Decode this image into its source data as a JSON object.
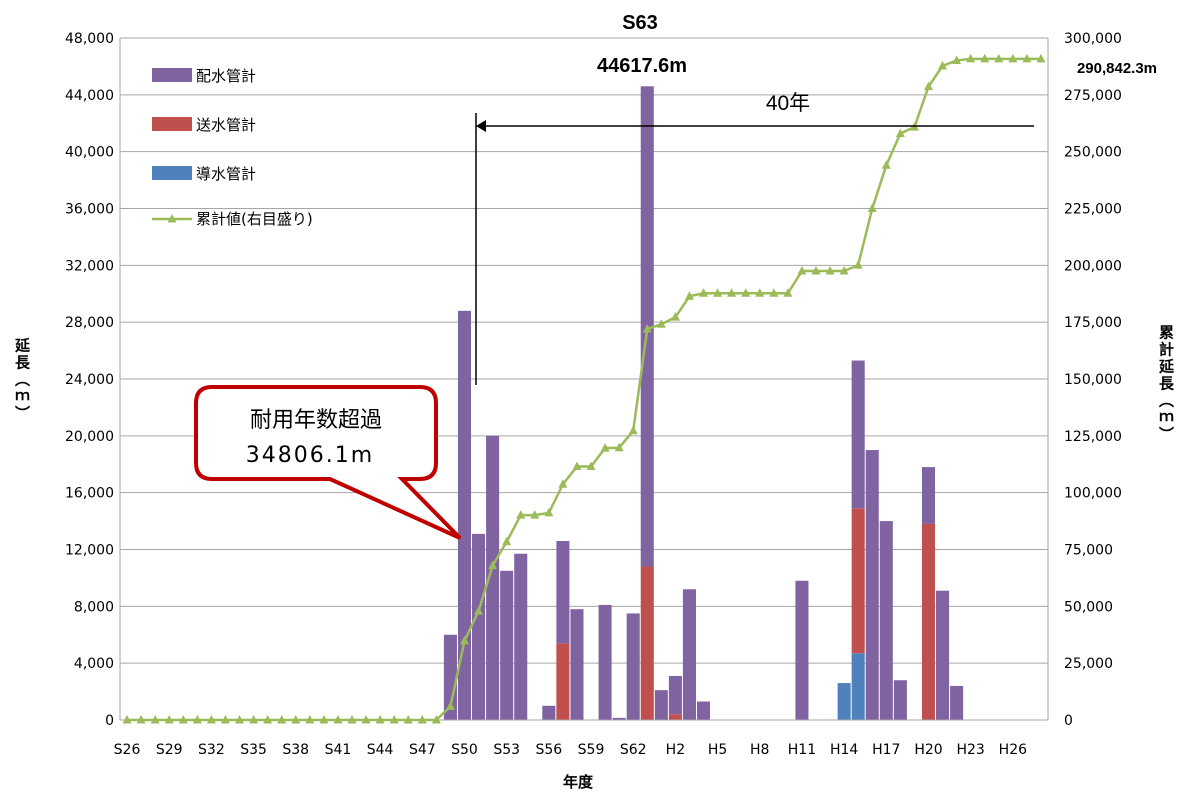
{
  "chart_data": {
    "type": "bar",
    "stacked": true,
    "xlabel": "年度",
    "ylabel": "延長（ｍ）",
    "y2label": "累計延長（ｍ）",
    "ylim": [
      0,
      48000
    ],
    "y2lim": [
      0,
      300000
    ],
    "yticks": [
      "0",
      "4,000",
      "8,000",
      "12,000",
      "16,000",
      "20,000",
      "24,000",
      "28,000",
      "32,000",
      "36,000",
      "40,000",
      "44,000",
      "48,000"
    ],
    "y2ticks": [
      "0",
      "25,000",
      "50,000",
      "75,000",
      "100,000",
      "125,000",
      "150,000",
      "175,000",
      "200,000",
      "225,000",
      "250,000",
      "275,000",
      "300,000"
    ],
    "categories": [
      "S26",
      "S27",
      "S28",
      "S29",
      "S30",
      "S31",
      "S32",
      "S33",
      "S34",
      "S35",
      "S36",
      "S37",
      "S38",
      "S39",
      "S40",
      "S41",
      "S42",
      "S43",
      "S44",
      "S45",
      "S46",
      "S47",
      "S48",
      "S49",
      "S50",
      "S51",
      "S52",
      "S53",
      "S54",
      "S55",
      "S56",
      "S57",
      "S58",
      "S59",
      "S60",
      "S61",
      "S62",
      "S63",
      "H1",
      "H2",
      "H3",
      "H4",
      "H5",
      "H6",
      "H7",
      "H8",
      "H9",
      "H10",
      "H11",
      "H12",
      "H13",
      "H14",
      "H15",
      "H16",
      "H17",
      "H18",
      "H19",
      "H20",
      "H21",
      "H22",
      "H23",
      "H24",
      "H25",
      "H26",
      "H27",
      "H28"
    ],
    "xtick_labels": [
      "S26",
      "S29",
      "S32",
      "S35",
      "S38",
      "S41",
      "S44",
      "S47",
      "S50",
      "S53",
      "S56",
      "S59",
      "S62",
      "H2",
      "H5",
      "H8",
      "H11",
      "H14",
      "H17",
      "H20",
      "H23",
      "H26"
    ],
    "series": [
      {
        "name": "導水管計",
        "color": "#4F81BD",
        "values": [
          0,
          0,
          0,
          0,
          0,
          0,
          0,
          0,
          0,
          0,
          0,
          0,
          0,
          0,
          0,
          0,
          0,
          0,
          0,
          0,
          0,
          0,
          0,
          0,
          0,
          0,
          0,
          0,
          0,
          0,
          0,
          0,
          0,
          0,
          0,
          0,
          0,
          0,
          0,
          0,
          0,
          0,
          0,
          0,
          0,
          0,
          0,
          0,
          0,
          0,
          0,
          2600,
          4700,
          0,
          0,
          0,
          0,
          0,
          0,
          0,
          0,
          0,
          0,
          0,
          0,
          0
        ]
      },
      {
        "name": "送水管計",
        "color": "#C0504D",
        "values": [
          0,
          0,
          0,
          0,
          0,
          0,
          0,
          0,
          0,
          0,
          0,
          0,
          0,
          0,
          0,
          0,
          0,
          0,
          0,
          0,
          0,
          0,
          0,
          0,
          0,
          0,
          0,
          0,
          0,
          0,
          0,
          5400,
          0,
          0,
          0,
          0,
          0,
          10800,
          0,
          400,
          0,
          0,
          0,
          0,
          0,
          0,
          0,
          0,
          0,
          0,
          0,
          0,
          10200,
          0,
          0,
          0,
          0,
          13800,
          0,
          0,
          0,
          0,
          0,
          0,
          0,
          0
        ]
      },
      {
        "name": "配水管計",
        "color": "#8064A2",
        "values": [
          0,
          0,
          0,
          0,
          0,
          0,
          0,
          0,
          0,
          0,
          0,
          0,
          0,
          0,
          0,
          0,
          0,
          0,
          0,
          0,
          0,
          0,
          0,
          6000,
          28800,
          13100,
          20000,
          10500,
          11700,
          0,
          1000,
          7200,
          7800,
          0,
          8100,
          150,
          7500,
          33800,
          2100,
          2700,
          9200,
          1300,
          0,
          0,
          0,
          0,
          0,
          0,
          9800,
          0,
          0,
          0,
          10400,
          19000,
          14000,
          2800,
          0,
          4000,
          9100,
          2400,
          0,
          0,
          0,
          0,
          0,
          0
        ]
      },
      {
        "name": "累計値(右目盛り)",
        "color": "#9BBB59",
        "type": "line",
        "axis": "right",
        "values": [
          0,
          0,
          0,
          0,
          0,
          0,
          0,
          0,
          0,
          0,
          0,
          0,
          0,
          0,
          0,
          0,
          0,
          0,
          0,
          0,
          0,
          0,
          0,
          6000,
          34800,
          47900,
          67900,
          78400,
          90100,
          90100,
          91100,
          103700,
          111500,
          111500,
          119600,
          119750,
          127250,
          172000,
          174100,
          177200,
          186400,
          187700,
          187700,
          187700,
          187700,
          187700,
          187700,
          187700,
          197500,
          197500,
          197500,
          197500,
          200100,
          225000,
          244000,
          258000,
          260800,
          278600,
          287700,
          290100,
          290842,
          290842,
          290842,
          290842,
          290842,
          290842
        ]
      }
    ],
    "annotations": {
      "peak_label": "S63",
      "peak_value": "44617.6m",
      "span_label": "40年",
      "total_label": "290,842.3m",
      "callout_line1": "耐用年数超過",
      "callout_line2": "34806.1m"
    },
    "legend_position": "top-left",
    "grid": true
  }
}
